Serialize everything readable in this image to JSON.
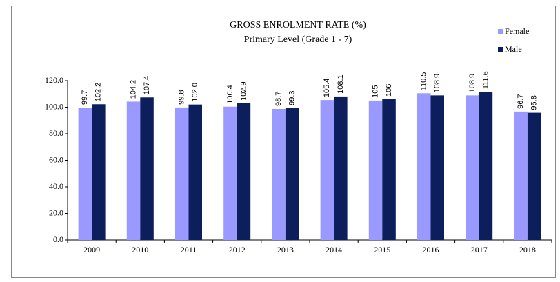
{
  "chart_data": {
    "type": "bar",
    "title": "GROSS ENROLMENT RATE (%)",
    "subtitle": "Primary Level (Grade 1 - 7)",
    "categories": [
      "2009",
      "2010",
      "2011",
      "2012",
      "2013",
      "2014",
      "2015",
      "2016",
      "2017",
      "2018"
    ],
    "series": [
      {
        "name": "Female",
        "color": "#9999ff",
        "values": [
          99.7,
          104.2,
          99.8,
          100.4,
          98.7,
          105.4,
          105,
          110.5,
          108.9,
          96.7
        ],
        "value_labels": [
          "99.7",
          "104.2",
          "99.8",
          "100.4",
          "98.7",
          "105.4",
          "105",
          "110.5",
          "108.9",
          "96.7"
        ]
      },
      {
        "name": "Male",
        "color": "#0c1f5c",
        "values": [
          102.2,
          107.4,
          102.0,
          102.9,
          99.3,
          108.1,
          106,
          108.9,
          111.6,
          95.8
        ],
        "value_labels": [
          "102.2",
          "107.4",
          "102.0",
          "102.9",
          "99.3",
          "108.1",
          "106",
          "108.9",
          "111.6",
          "95.8"
        ]
      }
    ],
    "ylim": [
      0,
      120
    ],
    "yticks": [
      {
        "value": 0,
        "label": "0.0"
      },
      {
        "value": 20,
        "label": "20.0"
      },
      {
        "value": 40,
        "label": "40.0"
      },
      {
        "value": 60,
        "label": "60.0"
      },
      {
        "value": 80,
        "label": "80.0"
      },
      {
        "value": 100,
        "label": "100.0"
      },
      {
        "value": 120,
        "label": "120.0"
      }
    ],
    "grid": false,
    "legend": "top-right"
  }
}
